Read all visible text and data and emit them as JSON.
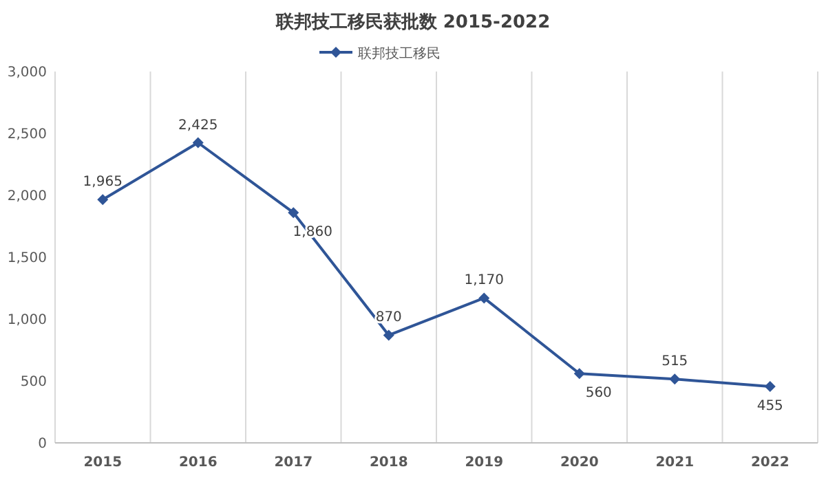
{
  "chart_data": {
    "type": "line",
    "title": "联邦技工移民获批数 2015-2022",
    "categories": [
      "2015",
      "2016",
      "2017",
      "2018",
      "2019",
      "2020",
      "2021",
      "2022"
    ],
    "series": [
      {
        "name": "联邦技工移民",
        "color": "#2f5597",
        "values": [
          1965,
          2425,
          1860,
          870,
          1170,
          560,
          515,
          455
        ],
        "value_labels": [
          "1,965",
          "2,425",
          "1,860",
          "870",
          "1,170",
          "560",
          "515",
          "455"
        ]
      }
    ],
    "ylim": [
      0,
      3000
    ],
    "yticks": [
      {
        "value": 0,
        "label": "0"
      },
      {
        "value": 500,
        "label": "500"
      },
      {
        "value": 1000,
        "label": "1,000"
      },
      {
        "value": 1500,
        "label": "1,500"
      },
      {
        "value": 2000,
        "label": "2,000"
      },
      {
        "value": 2500,
        "label": "2,500"
      },
      {
        "value": 3000,
        "label": "3,000"
      }
    ],
    "grid": "x",
    "legend": "top",
    "marker": "diamond",
    "line_style": "solid"
  }
}
